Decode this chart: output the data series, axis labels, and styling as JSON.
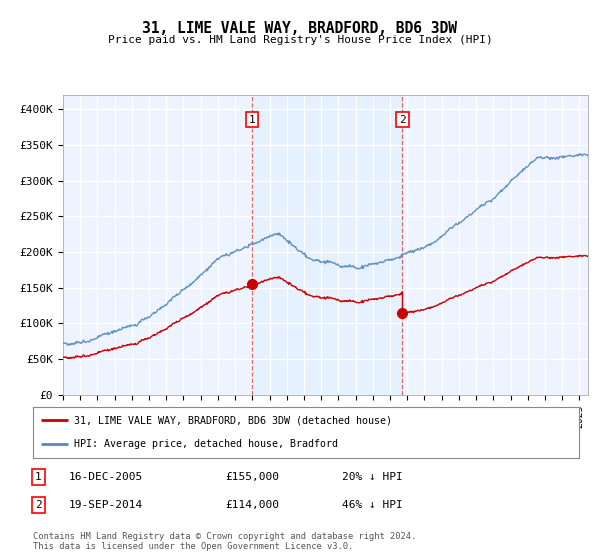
{
  "title": "31, LIME VALE WAY, BRADFORD, BD6 3DW",
  "subtitle": "Price paid vs. HM Land Registry's House Price Index (HPI)",
  "ylim": [
    0,
    420000
  ],
  "yticks": [
    0,
    50000,
    100000,
    150000,
    200000,
    250000,
    300000,
    350000,
    400000
  ],
  "ytick_labels": [
    "£0",
    "£50K",
    "£100K",
    "£150K",
    "£200K",
    "£250K",
    "£300K",
    "£350K",
    "£400K"
  ],
  "xlim_start": 1995.0,
  "xlim_end": 2025.5,
  "hpi_color": "#5588bb",
  "price_color": "#cc0000",
  "sale1_date": 2005.96,
  "sale1_price": 155000,
  "sale2_date": 2014.72,
  "sale2_price": 114000,
  "background_color": "#ddeeff",
  "chart_bg": "#eef4ff",
  "legend_label_red": "31, LIME VALE WAY, BRADFORD, BD6 3DW (detached house)",
  "legend_label_blue": "HPI: Average price, detached house, Bradford",
  "annotation1_label": "16-DEC-2005",
  "annotation1_price": "£155,000",
  "annotation1_hpi": "20% ↓ HPI",
  "annotation2_label": "19-SEP-2014",
  "annotation2_price": "£114,000",
  "annotation2_hpi": "46% ↓ HPI",
  "footer": "Contains HM Land Registry data © Crown copyright and database right 2024.\nThis data is licensed under the Open Government Licence v3.0."
}
